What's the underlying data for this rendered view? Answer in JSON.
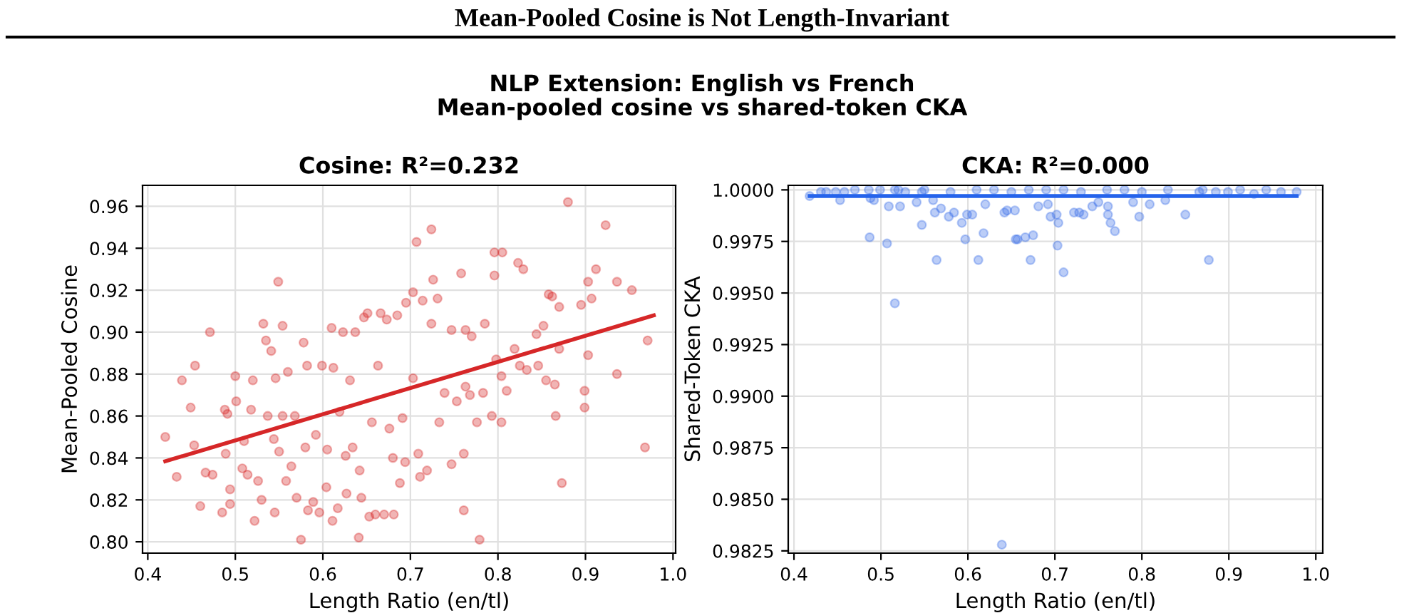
{
  "chart_data": [
    {
      "type": "scatter",
      "title": "Cosine: R²=0.232",
      "xlabel": "Length Ratio (en/tl)",
      "ylabel": "Mean-Pooled Cosine",
      "annotations": [
        "Mean-Pooled Cosine is Not Length-Invariant",
        "NLP Extension: English vs French\nMean-pooled cosine vs shared-token CKA"
      ],
      "xlim": [
        0.394,
        1.003
      ],
      "ylim": [
        0.7946,
        0.97
      ],
      "xticks": [
        0.4,
        0.5,
        0.6,
        0.7,
        0.8,
        0.9,
        {
          "value": 1.0,
          "label": "1.0"
        }
      ],
      "yticks": [
        {
          "value": 0.8,
          "label": "0.80"
        },
        0.82,
        0.84,
        0.86,
        0.88,
        {
          "value": 0.9,
          "label": "0.90"
        },
        0.92,
        0.94,
        0.96
      ],
      "grid": true,
      "series": [
        {
          "marker": "circle",
          "color": "#d62728",
          "x": [
            0.42,
            0.433,
            0.439,
            0.449,
            0.454,
            0.453,
            0.46,
            0.466,
            0.471,
            0.474,
            0.485,
            0.488,
            0.489,
            0.491,
            0.494,
            0.494,
            0.5,
            0.501,
            0.508,
            0.51,
            0.514,
            0.518,
            0.52,
            0.522,
            0.526,
            0.53,
            0.532,
            0.535,
            0.537,
            0.541,
            0.544,
            0.545,
            0.546,
            0.549,
            0.55,
            0.554,
            0.554,
            0.558,
            0.56,
            0.564,
            0.568,
            0.57,
            0.575,
            0.578,
            0.58,
            0.583,
            0.582,
            0.589,
            0.592,
            0.596,
            0.599,
            0.604,
            0.605,
            0.61,
            0.611,
            0.612,
            0.617,
            0.619,
            0.623,
            0.626,
            0.627,
            0.631,
            0.634,
            0.637,
            0.641,
            0.642,
            0.644,
            0.647,
            0.651,
            0.653,
            0.656,
            0.66,
            0.663,
            0.666,
            0.67,
            0.673,
            0.676,
            0.68,
            0.681,
            0.685,
            0.688,
            0.691,
            0.694,
            0.695,
            0.703,
            0.703,
            0.707,
            0.709,
            0.711,
            0.714,
            0.719,
            0.724,
            0.724,
            0.726,
            0.731,
            0.733,
            0.739,
            0.747,
            0.747,
            0.753,
            0.758,
            0.761,
            0.761,
            0.763,
            0.763,
            0.768,
            0.77,
            0.776,
            0.779,
            0.783,
            0.785,
            0.793,
            0.796,
            0.796,
            0.798,
            0.804,
            0.804,
            0.805,
            0.81,
            0.819,
            0.823,
            0.825,
            0.829,
            0.833,
            0.844,
            0.846,
            0.852,
            0.855,
            0.858,
            0.862,
            0.865,
            0.866,
            0.87,
            0.87,
            0.873,
            0.88,
            0.895,
            0.899,
            0.899,
            0.903,
            0.903,
            0.907,
            0.912,
            0.923,
            0.936,
            0.936,
            0.953,
            0.968,
            0.971
          ],
          "values": [
            0.85,
            0.831,
            0.877,
            0.864,
            0.884,
            0.846,
            0.817,
            0.833,
            0.9,
            0.832,
            0.814,
            0.863,
            0.842,
            0.861,
            0.825,
            0.818,
            0.879,
            0.867,
            0.835,
            0.848,
            0.832,
            0.863,
            0.877,
            0.81,
            0.829,
            0.82,
            0.904,
            0.896,
            0.86,
            0.891,
            0.849,
            0.814,
            0.878,
            0.924,
            0.843,
            0.903,
            0.86,
            0.829,
            0.881,
            0.836,
            0.86,
            0.821,
            0.801,
            0.895,
            0.845,
            0.815,
            0.884,
            0.819,
            0.851,
            0.814,
            0.884,
            0.826,
            0.844,
            0.902,
            0.81,
            0.883,
            0.816,
            0.862,
            0.9,
            0.841,
            0.823,
            0.877,
            0.845,
            0.9,
            0.802,
            0.834,
            0.821,
            0.907,
            0.909,
            0.812,
            0.857,
            0.813,
            0.884,
            0.909,
            0.813,
            0.906,
            0.854,
            0.84,
            0.813,
            0.908,
            0.828,
            0.859,
            0.838,
            0.914,
            0.919,
            0.878,
            0.943,
            0.842,
            0.831,
            0.915,
            0.834,
            0.949,
            0.904,
            0.925,
            0.916,
            0.857,
            0.871,
            0.837,
            0.901,
            0.867,
            0.928,
            0.842,
            0.815,
            0.901,
            0.874,
            0.87,
            0.898,
            0.857,
            0.801,
            0.871,
            0.904,
            0.86,
            0.938,
            0.927,
            0.887,
            0.857,
            0.879,
            0.938,
            0.872,
            0.892,
            0.933,
            0.884,
            0.93,
            0.882,
            0.899,
            0.884,
            0.903,
            0.877,
            0.918,
            0.917,
            0.875,
            0.86,
            0.892,
            0.912,
            0.828,
            0.962,
            0.913,
            0.872,
            0.864,
            0.924,
            0.889,
            0.916,
            0.93,
            0.951,
            0.924,
            0.88,
            0.92,
            0.845,
            0.896
          ]
        },
        {
          "type": "line",
          "color": "#d62728",
          "x": [
            0.42,
            0.978
          ],
          "values": [
            0.8384,
            0.908
          ]
        }
      ]
    },
    {
      "type": "scatter",
      "title": "CKA: R²=0.000",
      "xlabel": "Length Ratio (en/tl)",
      "ylabel": "Shared-Token CKA",
      "xlim": [
        0.3934,
        1.008
      ],
      "ylim": [
        0.98239,
        1.00022
      ],
      "xticks": [
        0.4,
        0.5,
        0.6,
        0.7,
        0.8,
        0.9,
        {
          "value": 1.0,
          "label": "1.0"
        }
      ],
      "yticks": [
        {
          "value": 0.9825,
          "label": "0.9825"
        },
        {
          "value": 0.985,
          "label": "0.9850"
        },
        {
          "value": 0.9875,
          "label": "0.9875"
        },
        {
          "value": 0.99,
          "label": "0.9900"
        },
        {
          "value": 0.9925,
          "label": "0.9925"
        },
        {
          "value": 0.995,
          "label": "0.9950"
        },
        {
          "value": 0.9975,
          "label": "0.9975"
        },
        {
          "value": 1.0,
          "label": "1.0000"
        }
      ],
      "grid": true,
      "series": [
        {
          "marker": "circle",
          "color": "#3b6fe8",
          "x": [
            0.418,
            0.431,
            0.437,
            0.448,
            0.453,
            0.458,
            0.47,
            0.486,
            0.488,
            0.487,
            0.492,
            0.499,
            0.507,
            0.509,
            0.516,
            0.516,
            0.522,
            0.528,
            0.541,
            0.547,
            0.547,
            0.56,
            0.562,
            0.564,
            0.569,
            0.578,
            0.584,
            0.593,
            0.597,
            0.599,
            0.605,
            0.612,
            0.618,
            0.62,
            0.642,
            0.639,
            0.645,
            0.654,
            0.655,
            0.657,
            0.666,
            0.672,
            0.675,
            0.681,
            0.692,
            0.695,
            0.702,
            0.704,
            0.703,
            0.71,
            0.722,
            0.728,
            0.733,
            0.743,
            0.75,
            0.761,
            0.761,
            0.764,
            0.769,
            0.79,
            0.797,
            0.809,
            0.827,
            0.85,
            0.866,
            0.877,
            0.885,
            0.899,
            0.913,
            0.929,
            0.943,
            0.96,
            0.978,
            0.52,
            0.55,
            0.58,
            0.61,
            0.63,
            0.65,
            0.67,
            0.69,
            0.71,
            0.73,
            0.76,
            0.78,
            0.8,
            0.83,
            0.87
          ],
          "values": [
            0.9997,
            0.9999,
            0.9999,
            0.9999,
            0.9995,
            0.9999,
            1.0,
            1.0,
            0.9996,
            0.9977,
            0.9995,
            1.0,
            0.9974,
            0.9992,
            0.9945,
            1.0,
            0.9992,
            0.9999,
            0.9994,
            0.9983,
            0.9999,
            0.9995,
            0.9989,
            0.9966,
            0.9991,
            0.9987,
            0.9989,
            0.9984,
            0.9976,
            0.9988,
            0.9988,
            0.9966,
            0.9979,
            0.9993,
            0.9989,
            0.9828,
            0.999,
            0.999,
            0.9976,
            0.9976,
            0.9977,
            0.9966,
            0.9978,
            0.9992,
            0.9993,
            0.9987,
            0.9988,
            0.9984,
            0.9973,
            0.996,
            0.9989,
            0.9989,
            0.9988,
            0.9992,
            0.9994,
            0.9992,
            0.9988,
            0.9984,
            0.998,
            0.9994,
            0.9987,
            0.9993,
            0.9995,
            0.9988,
            0.9999,
            0.9966,
            0.9999,
            0.9999,
            1.0,
            0.9998,
            1.0,
            0.9999,
            0.9999,
            1.0,
            1.0,
            0.9999,
            1.0,
            1.0,
            0.9999,
            1.0,
            1.0,
            1.0,
            0.9999,
            1.0,
            1.0,
            0.9999,
            1.0,
            1.0
          ]
        },
        {
          "type": "line",
          "color": "#2563eb",
          "x": [
            0.418,
            0.978
          ],
          "values": [
            0.9997,
            0.9997
          ]
        }
      ]
    }
  ]
}
